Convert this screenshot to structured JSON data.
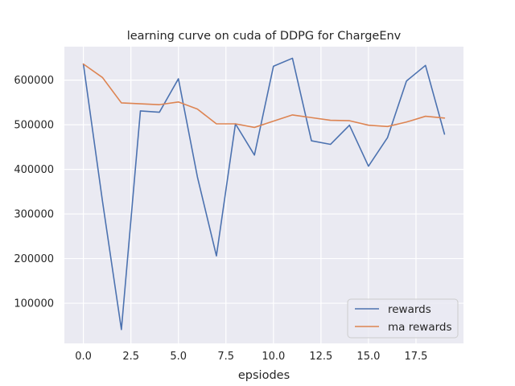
{
  "chart_data": {
    "type": "line",
    "title": "learning curve on cuda of DDPG for ChargeEnv",
    "xlabel": "epsiodes",
    "ylabel": "",
    "xlim": [
      -1,
      20
    ],
    "ylim": [
      10000,
      675000
    ],
    "xticks": [
      0.0,
      2.5,
      5.0,
      7.5,
      10.0,
      12.5,
      15.0,
      17.5
    ],
    "xtick_labels": [
      "0.0",
      "2.5",
      "5.0",
      "7.5",
      "10.0",
      "12.5",
      "15.0",
      "17.5"
    ],
    "yticks": [
      100000,
      200000,
      300000,
      400000,
      500000,
      600000
    ],
    "ytick_labels": [
      "100000",
      "200000",
      "300000",
      "400000",
      "500000",
      "600000"
    ],
    "grid": true,
    "legend_position": "lower-right",
    "x": [
      0,
      1,
      2,
      3,
      4,
      5,
      6,
      7,
      8,
      9,
      10,
      11,
      12,
      13,
      14,
      15,
      16,
      17,
      18,
      19
    ],
    "series": [
      {
        "name": "rewards",
        "color": "#4c72b0",
        "values": [
          636000,
          330000,
          41000,
          531000,
          528000,
          603000,
          383000,
          206000,
          502000,
          432000,
          631000,
          649000,
          464000,
          456000,
          499000,
          407000,
          471000,
          598000,
          633000,
          479000
        ]
      },
      {
        "name": "ma rewards",
        "color": "#dd8452",
        "values": [
          636000,
          606000,
          549000,
          547000,
          545000,
          551000,
          535000,
          502000,
          502000,
          494000,
          508000,
          522000,
          516000,
          510000,
          509000,
          499000,
          496000,
          506000,
          519000,
          515000
        ]
      }
    ]
  }
}
